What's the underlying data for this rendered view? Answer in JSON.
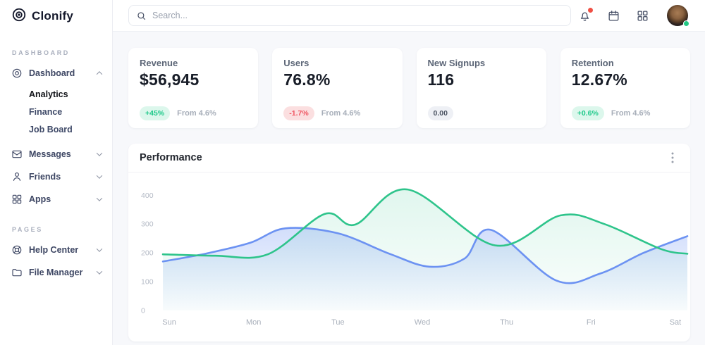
{
  "app": {
    "name": "Clonify"
  },
  "sidebar": {
    "logo_text": "Clonify",
    "sections": [
      {
        "label": "DASHBOARD",
        "items": [
          {
            "label": "Dashboard",
            "icon": "dashboard-icon",
            "expanded": true,
            "children": [
              {
                "label": "Analytics",
                "active": true
              },
              {
                "label": "Finance",
                "active": false
              },
              {
                "label": "Job Board",
                "active": false
              }
            ]
          },
          {
            "label": "Messages",
            "icon": "mail-icon"
          },
          {
            "label": "Friends",
            "icon": "user-icon"
          },
          {
            "label": "Apps",
            "icon": "apps-icon"
          }
        ]
      },
      {
        "label": "PAGES",
        "items": [
          {
            "label": "Help Center",
            "icon": "lifebuoy-icon"
          },
          {
            "label": "File Manager",
            "icon": "folder-icon"
          }
        ]
      }
    ]
  },
  "topbar": {
    "search_placeholder": "Search...",
    "icons": [
      "bell-icon",
      "calendar-icon",
      "grid-icon",
      "avatar"
    ],
    "bell_has_notification": true,
    "avatar_status": "online"
  },
  "stats": [
    {
      "title": "Revenue",
      "value": "$56,945",
      "badge": "+45%",
      "badge_type": "positive",
      "note": "From 4.6%"
    },
    {
      "title": "Users",
      "value": "76.8%",
      "badge": "-1.7%",
      "badge_type": "negative",
      "note": "From 4.6%"
    },
    {
      "title": "New Signups",
      "value": "116",
      "badge": "0.00",
      "badge_type": "neutral",
      "note": ""
    },
    {
      "title": "Retention",
      "value": "12.67%",
      "badge": "+0.6%",
      "badge_type": "positive",
      "note": "From 4.6%"
    }
  ],
  "chart_card": {
    "title": "Performance"
  },
  "chart_data": {
    "type": "area",
    "title": "Performance",
    "x_labels": [
      "Sun",
      "Mon",
      "Tue",
      "Wed",
      "Thu",
      "Fri",
      "Sat"
    ],
    "y_ticks": [
      0,
      100,
      200,
      300,
      400
    ],
    "ylim": [
      0,
      430
    ],
    "grid": false,
    "legend": false,
    "series": [
      {
        "name": "series-green",
        "color": "#2ec48b",
        "fill_top_opacity": 0.15,
        "points": [
          [
            0,
            195
          ],
          [
            0.6,
            190
          ],
          [
            1.2,
            195
          ],
          [
            1.85,
            335
          ],
          [
            2.2,
            298
          ],
          [
            2.8,
            420
          ],
          [
            3.8,
            226
          ],
          [
            4.55,
            330
          ],
          [
            5.05,
            300
          ],
          [
            5.7,
            213
          ],
          [
            6,
            197
          ]
        ]
      },
      {
        "name": "series-blue",
        "color": "#6c92f2",
        "fill_top_opacity": 0.45,
        "points": [
          [
            0,
            170
          ],
          [
            0.5,
            198
          ],
          [
            1.0,
            235
          ],
          [
            1.4,
            285
          ],
          [
            2.0,
            268
          ],
          [
            2.6,
            196
          ],
          [
            3.05,
            152
          ],
          [
            3.45,
            180
          ],
          [
            3.75,
            280
          ],
          [
            4.5,
            104
          ],
          [
            5.0,
            128
          ],
          [
            5.5,
            200
          ],
          [
            6,
            258
          ]
        ]
      }
    ]
  },
  "colors": {
    "green_line": "#2ec48b",
    "blue_line": "#6c92f2",
    "positive_bg": "#dcf7ec",
    "positive_text": "#1ec98a",
    "negative_bg": "#fbdfe0",
    "negative_text": "#ef5561",
    "neutral_bg": "#eef0f5",
    "neutral_text": "#4d5564",
    "notification_dot": "#f04f44",
    "online_dot": "#22c783",
    "main_background": "#f7f8fb"
  }
}
